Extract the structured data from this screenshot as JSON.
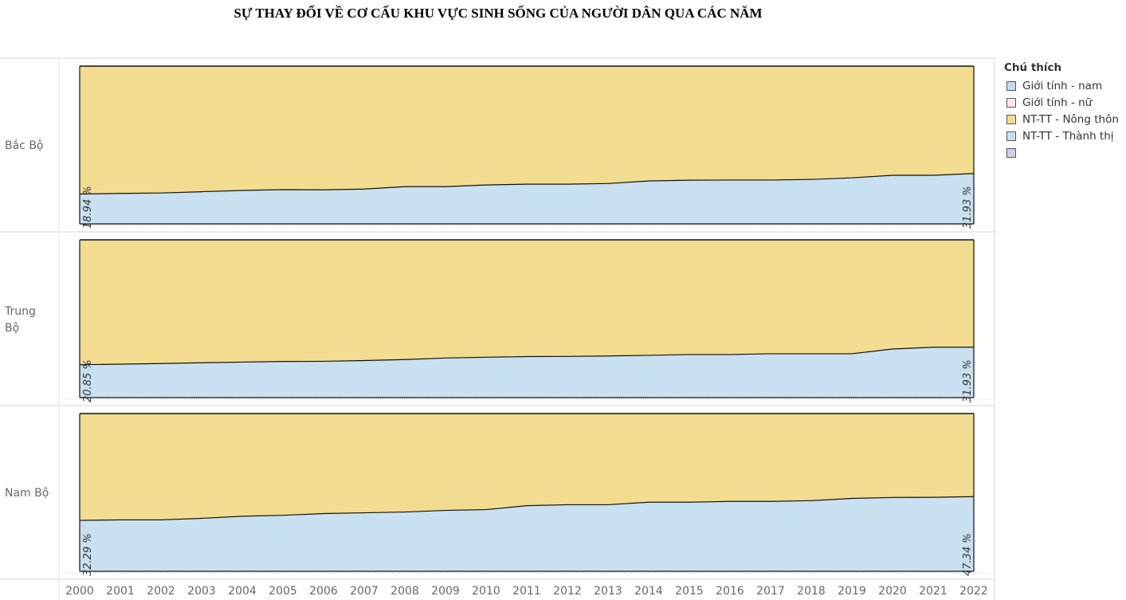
{
  "chart_data": {
    "type": "area",
    "title": "SỰ THAY ĐỔI VỀ CƠ CẤU KHU VỰC SINH SỐNG CỦA NGƯỜI DÂN QUA CÁC NĂM",
    "xlabel": "",
    "ylabel": "",
    "categories": [
      "2000",
      "2001",
      "2002",
      "2003",
      "2004",
      "2005",
      "2006",
      "2007",
      "2008",
      "2009",
      "2010",
      "2011",
      "2012",
      "2013",
      "2014",
      "2015",
      "2016",
      "2017",
      "2018",
      "2019",
      "2020",
      "2021",
      "2022"
    ],
    "ylim": [
      0,
      100
    ],
    "stacked": true,
    "percent_stacked": true,
    "grid": false,
    "legend_position": "right",
    "facets": [
      {
        "name": "Bắc Bộ",
        "start_label": "18.94 %",
        "end_label": "31.93 %",
        "series": [
          {
            "name": "NT-TT - Thành thị",
            "color": "#c9e0f0",
            "values": [
              18.94,
              19.3,
              19.6,
              20.4,
              21.2,
              21.7,
              21.6,
              22.1,
              23.6,
              23.6,
              24.7,
              25.2,
              25.2,
              25.6,
              27.2,
              27.7,
              27.8,
              27.8,
              28.2,
              29.2,
              30.8,
              30.8,
              31.93
            ]
          },
          {
            "name": "NT-TT - Nông thôn",
            "color": "#f2dc90",
            "values": [
              81.06,
              80.7,
              80.4,
              79.6,
              78.8,
              78.3,
              78.4,
              77.9,
              76.4,
              76.4,
              75.3,
              74.8,
              74.8,
              74.4,
              72.8,
              72.3,
              72.2,
              72.2,
              71.8,
              70.8,
              69.2,
              69.2,
              68.07
            ]
          }
        ]
      },
      {
        "name": "Trung Bộ",
        "start_label": "20.85 %",
        "end_label": "31.93 %",
        "series": [
          {
            "name": "NT-TT - Thành thị",
            "color": "#c9e0f0",
            "values": [
              20.85,
              21.2,
              21.6,
              22.1,
              22.5,
              22.9,
              23.0,
              23.5,
              24.1,
              25.1,
              25.6,
              26.0,
              26.1,
              26.4,
              26.8,
              27.3,
              27.3,
              27.8,
              27.8,
              27.8,
              30.8,
              31.93,
              31.93
            ]
          },
          {
            "name": "NT-TT - Nông thôn",
            "color": "#f2dc90",
            "values": [
              79.15,
              78.8,
              78.4,
              77.9,
              77.5,
              77.1,
              77.0,
              76.5,
              75.9,
              74.9,
              74.4,
              74.0,
              73.9,
              73.6,
              73.2,
              72.7,
              72.7,
              72.2,
              72.2,
              72.2,
              69.2,
              68.07,
              68.07
            ]
          }
        ]
      },
      {
        "name": "Nam Bộ",
        "start_label": "32.29 %",
        "end_label": "47.34 %",
        "series": [
          {
            "name": "NT-TT - Thành thị",
            "color": "#c9e0f0",
            "values": [
              32.29,
              32.6,
              32.6,
              33.6,
              34.9,
              35.5,
              36.6,
              37.1,
              37.6,
              38.6,
              39.1,
              41.6,
              42.2,
              42.2,
              43.8,
              43.8,
              44.3,
              44.3,
              44.8,
              46.2,
              46.8,
              46.9,
              47.34
            ]
          },
          {
            "name": "NT-TT - Nông thôn",
            "color": "#f2dc90",
            "values": [
              67.71,
              67.4,
              67.4,
              66.4,
              65.1,
              64.5,
              63.4,
              62.9,
              62.4,
              61.4,
              60.9,
              58.4,
              57.8,
              57.8,
              56.2,
              56.2,
              55.7,
              55.7,
              55.2,
              53.8,
              53.2,
              53.1,
              52.66
            ]
          }
        ]
      }
    ]
  },
  "facet_labels": [
    "Bắc Bộ",
    "Trung\nBộ",
    "Nam Bộ"
  ],
  "legend": {
    "title": "Chú thích",
    "items": [
      {
        "label": "Giới tính - nam",
        "color": "#c8d9ec"
      },
      {
        "label": "Giới tính - nữ",
        "color": "#f9e8f0"
      },
      {
        "label": "NT-TT - Nông thôn",
        "color": "#f2dc90"
      },
      {
        "label": "NT-TT - Thành thị",
        "color": "#c9e0f0"
      },
      {
        "label": "",
        "color": "#c8d4e4"
      }
    ]
  }
}
